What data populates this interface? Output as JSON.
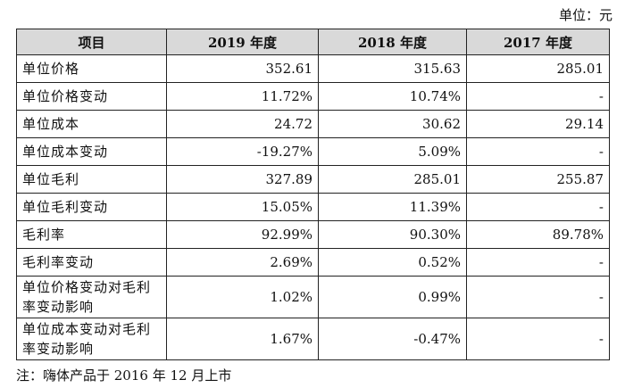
{
  "unit_label": "单位：元",
  "table": {
    "headers": [
      "项目",
      "2019 年度",
      "2018 年度",
      "2017 年度"
    ],
    "rows": [
      {
        "label": "单位价格",
        "v2019": "352.61",
        "v2018": "315.63",
        "v2017": "285.01"
      },
      {
        "label": "单位价格变动",
        "v2019": "11.72%",
        "v2018": "10.74%",
        "v2017": "-"
      },
      {
        "label": "单位成本",
        "v2019": "24.72",
        "v2018": "30.62",
        "v2017": "29.14"
      },
      {
        "label": "单位成本变动",
        "v2019": "-19.27%",
        "v2018": "5.09%",
        "v2017": "-"
      },
      {
        "label": "单位毛利",
        "v2019": "327.89",
        "v2018": "285.01",
        "v2017": "255.87"
      },
      {
        "label": "单位毛利变动",
        "v2019": "15.05%",
        "v2018": "11.39%",
        "v2017": "-"
      },
      {
        "label": "毛利率",
        "v2019": "92.99%",
        "v2018": "90.30%",
        "v2017": "89.78%"
      },
      {
        "label": "毛利率变动",
        "v2019": "2.69%",
        "v2018": "0.52%",
        "v2017": "-"
      },
      {
        "label": "单位价格变动对毛利率变动影响",
        "v2019": "1.02%",
        "v2018": "0.99%",
        "v2017": "-"
      },
      {
        "label": "单位成本变动对毛利率变动影响",
        "v2019": "1.67%",
        "v2018": "-0.47%",
        "v2017": "-"
      }
    ]
  },
  "note": "注：嗨体产品于 2016 年 12 月上市"
}
